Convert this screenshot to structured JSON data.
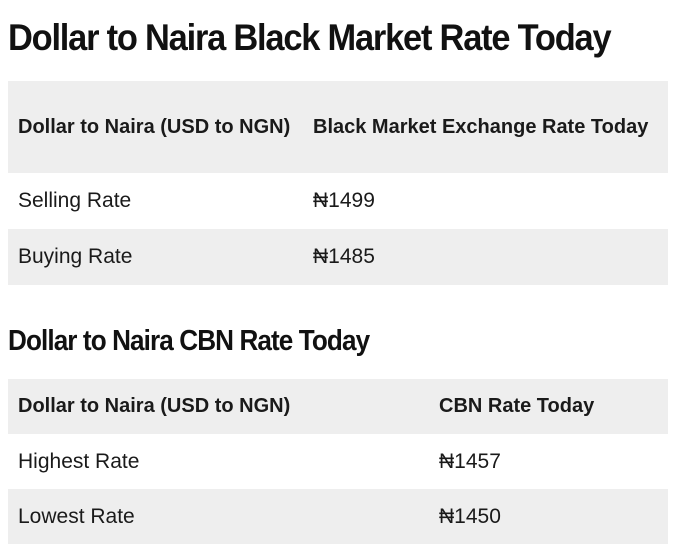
{
  "black_market": {
    "title": "Dollar to Naira Black Market Rate Today",
    "headers": [
      "Dollar to Naira (USD to NGN)",
      "Black Market Exchange Rate Today"
    ],
    "rows": [
      {
        "label": "Selling Rate",
        "value": "₦1499"
      },
      {
        "label": "Buying Rate",
        "value": "₦1485"
      }
    ]
  },
  "cbn": {
    "title": "Dollar to Naira CBN Rate Today",
    "headers": [
      "Dollar to Naira (USD to NGN)",
      "CBN Rate Today"
    ],
    "rows": [
      {
        "label": "Highest Rate",
        "value": "₦1457"
      },
      {
        "label": "Lowest Rate",
        "value": "₦1450"
      }
    ]
  },
  "colors": {
    "row_shade": "#eeeeee",
    "text": "#111111"
  }
}
